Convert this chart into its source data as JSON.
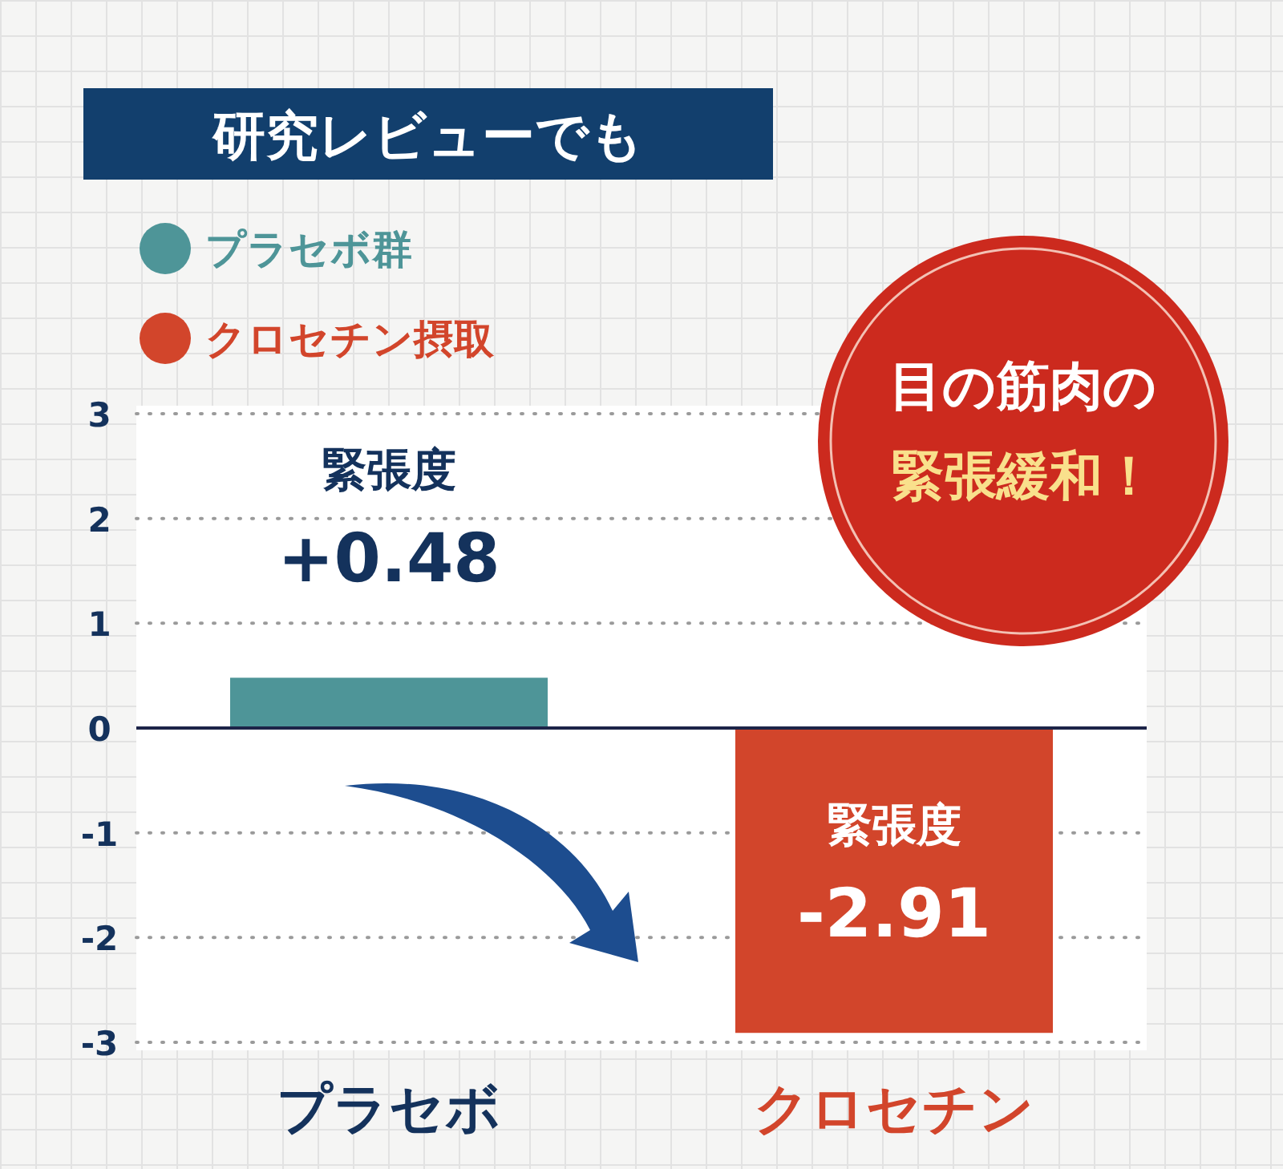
{
  "chart_data": {
    "type": "bar",
    "title": "研究レビューでも",
    "categories": [
      "プラセボ",
      "クロセチン"
    ],
    "series": [
      {
        "name": "プラセボ群",
        "color": "#4e9598",
        "values": [
          0.48,
          null
        ],
        "value_labels": [
          "緊張度 +0.48",
          null
        ]
      },
      {
        "name": "クロセチン摂取",
        "color": "#d2452b",
        "values": [
          null,
          -2.91
        ],
        "value_labels": [
          null,
          "緊張度 -2.91"
        ]
      }
    ],
    "ylim": [
      -3,
      3
    ],
    "yticks": [
      -3,
      -2,
      -1,
      0,
      1,
      2,
      3
    ],
    "grid": "y",
    "legend": "top left",
    "annotations": [
      "目の筋肉の",
      "緊張緩和！"
    ]
  }
}
